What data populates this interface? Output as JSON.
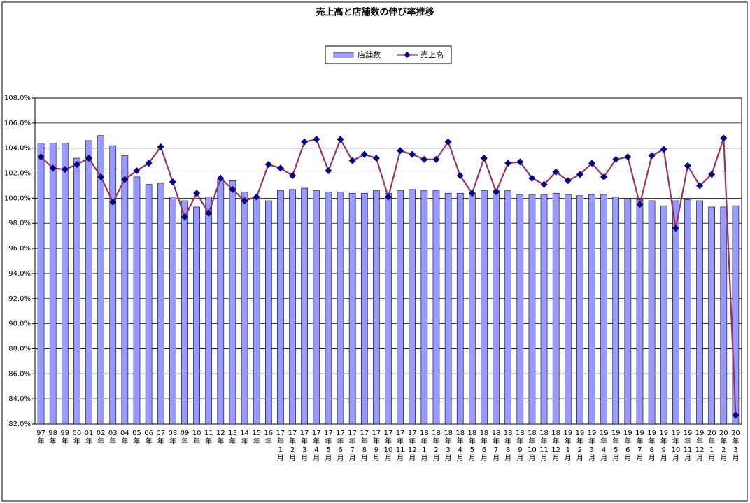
{
  "chart_data": {
    "type": "bar",
    "title": "売上高と店舗数の伸び率推移",
    "categories": [
      "97年",
      "98年",
      "99年",
      "00年",
      "01年",
      "02年",
      "03年",
      "04年",
      "05年",
      "06年",
      "07年",
      "08年",
      "09年",
      "10年",
      "11年",
      "12年",
      "13年",
      "14年",
      "15年",
      "16年",
      "17年1月",
      "17年2月",
      "17年3月",
      "17年4月",
      "17年5月",
      "17年6月",
      "17年7月",
      "17年8月",
      "17年9月",
      "17年10月",
      "17年11月",
      "17年12月",
      "18年1月",
      "18年2月",
      "18年3月",
      "18年4月",
      "18年5月",
      "18年6月",
      "18年7月",
      "18年8月",
      "18年9月",
      "18年10月",
      "18年11月",
      "18年12月",
      "19年1月",
      "19年2月",
      "19年3月",
      "19年4月",
      "19年5月",
      "19年6月",
      "19年7月",
      "19年8月",
      "19年9月",
      "19年10月",
      "19年11月",
      "19年12月",
      "20年1月",
      "20年2月",
      "20年3月"
    ],
    "series": [
      {
        "name": "店舗数",
        "type": "bar",
        "color": "#9999ff",
        "values": [
          104.4,
          104.4,
          104.4,
          103.2,
          104.6,
          105.0,
          104.2,
          103.4,
          101.7,
          101.1,
          101.2,
          100.1,
          99.8,
          99.3,
          100.1,
          101.5,
          101.4,
          100.5,
          100.1,
          99.8,
          100.6,
          100.7,
          100.8,
          100.6,
          100.5,
          100.5,
          100.4,
          100.4,
          100.6,
          100.4,
          100.6,
          100.7,
          100.6,
          100.6,
          100.4,
          100.4,
          100.4,
          100.6,
          100.6,
          100.6,
          100.3,
          100.3,
          100.3,
          100.4,
          100.3,
          100.2,
          100.3,
          100.3,
          100.1,
          100.0,
          99.9,
          99.8,
          99.4,
          99.8,
          99.9,
          99.8,
          99.3,
          99.3,
          99.4
        ]
      },
      {
        "name": "売上高",
        "type": "line",
        "color": "#993366",
        "marker_color": "#000080",
        "values": [
          103.3,
          102.4,
          102.3,
          102.7,
          103.2,
          101.7,
          99.7,
          101.5,
          102.2,
          102.8,
          104.1,
          101.3,
          98.5,
          100.4,
          98.8,
          101.6,
          100.7,
          99.8,
          100.1,
          102.7,
          102.4,
          101.8,
          104.5,
          104.7,
          102.2,
          104.7,
          103.0,
          103.5,
          103.2,
          100.1,
          103.8,
          103.5,
          103.1,
          103.1,
          104.5,
          101.8,
          100.4,
          103.2,
          100.5,
          102.8,
          102.9,
          101.6,
          101.1,
          102.1,
          101.4,
          101.9,
          102.8,
          101.7,
          103.1,
          103.3,
          99.5,
          103.4,
          103.9,
          97.6,
          102.6,
          101.0,
          101.9,
          104.8,
          82.7
        ]
      }
    ],
    "ylim": [
      82,
      108
    ],
    "yticks": [
      {
        "value": 82,
        "label": "82.0%"
      },
      {
        "value": 84,
        "label": "84.0%"
      },
      {
        "value": 86,
        "label": "86.0%"
      },
      {
        "value": 88,
        "label": "88.0%"
      },
      {
        "value": 90,
        "label": "90.0%"
      },
      {
        "value": 92,
        "label": "92.0%"
      },
      {
        "value": 94,
        "label": "94.0%"
      },
      {
        "value": 96,
        "label": "96.0%"
      },
      {
        "value": 98,
        "label": "98.0%"
      },
      {
        "value": 100,
        "label": "100.0%"
      },
      {
        "value": 102,
        "label": "102.0%"
      },
      {
        "value": 104,
        "label": "104.0%"
      },
      {
        "value": 106,
        "label": "106.0%"
      },
      {
        "value": 108,
        "label": "108.0%"
      }
    ],
    "grid": true,
    "legend": "top"
  }
}
